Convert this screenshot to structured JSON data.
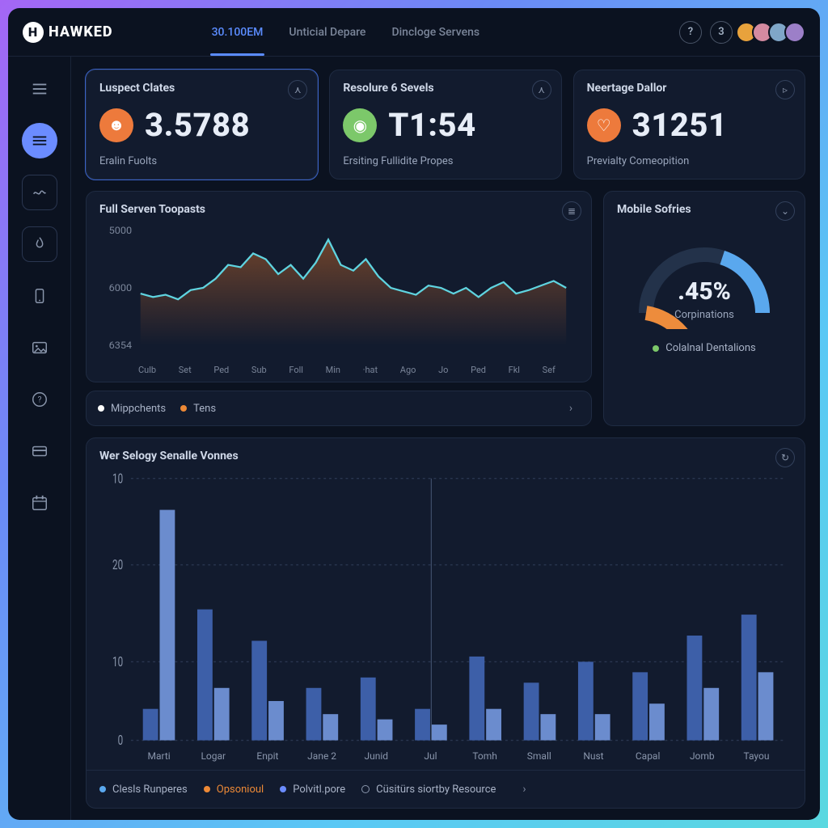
{
  "brand": "HAWKED",
  "header": {
    "tabs": [
      {
        "label": "30.100EM",
        "active": true
      },
      {
        "label": "Unticial Depare",
        "active": false
      },
      {
        "label": "Dincloge Servens",
        "active": false
      }
    ],
    "help_badge": "?",
    "notif_badge": "3",
    "avatars": [
      "#e8a23c",
      "#d48aa0",
      "#7fa6c8",
      "#9c7fc8"
    ]
  },
  "sidebar": {
    "items": [
      "list",
      "home",
      "flow",
      "flame",
      "mobile",
      "image",
      "help",
      "card",
      "calendar"
    ],
    "active_index": 1
  },
  "kpis": [
    {
      "title": "Luspect Clates",
      "icon_color": "#ed7a3c",
      "icon_glyph": "☻",
      "value": "3.5788",
      "sub": "Eralin Fuolts",
      "highlight": true,
      "action": "⋏"
    },
    {
      "title": "Resolure 6 Sevels",
      "icon_color": "#7cc86a",
      "icon_glyph": "◉",
      "value": "T1:54",
      "sub": "Ersiting Fullidite Propes",
      "highlight": false,
      "action": "⋏"
    },
    {
      "title": "Neertage Dallor",
      "icon_color": "#ed7a3c",
      "icon_glyph": "♡",
      "value": "31251",
      "sub": "Previalty Comeopition",
      "highlight": false,
      "action": "▹"
    }
  ],
  "line_chart": {
    "title": "Full Serven Toopasts",
    "action": "≣",
    "y_ticks": [
      "5000",
      "6000",
      "6354"
    ],
    "x_ticks": [
      "Culb",
      "Set",
      "Ped",
      "Sub",
      "Foll",
      "Min",
      "·hat",
      "Ago",
      "Jo",
      "Ped",
      "Fkl",
      "Sef"
    ],
    "stroke_color": "#5fd4e0",
    "fill_color": "#c96a2a",
    "points": [
      0.55,
      0.58,
      0.56,
      0.6,
      0.52,
      0.5,
      0.42,
      0.3,
      0.32,
      0.2,
      0.25,
      0.38,
      0.3,
      0.42,
      0.28,
      0.08,
      0.3,
      0.35,
      0.25,
      0.4,
      0.5,
      0.53,
      0.56,
      0.48,
      0.5,
      0.55,
      0.5,
      0.58,
      0.5,
      0.45,
      0.55,
      0.52,
      0.48,
      0.44,
      0.5
    ],
    "legend": [
      {
        "label": "Mippchents",
        "color": "#ffffff"
      },
      {
        "label": "Tens",
        "color": "#ed8936"
      }
    ]
  },
  "gauge": {
    "title": "Mobile Sofries",
    "value_text": ".45%",
    "label": "Corpinations",
    "pct_orange": 0.45,
    "pct_blue": 0.4,
    "orange": "#ed8c3c",
    "blue": "#5aa8ee",
    "track": "#23324a",
    "legend_color": "#7cc86a",
    "legend_text": "Colalnal Dentalions"
  },
  "bar_chart": {
    "title": "Wer Selogy Senalle Vonnes",
    "y_ticks": [
      "10",
      "20",
      "10",
      "0"
    ],
    "y_positions": [
      0,
      0.33,
      0.7,
      1.0
    ],
    "x_ticks": [
      "Marti",
      "Logar",
      "Enpit",
      "Jane 2",
      "Junid",
      "Jul",
      "Tomh",
      "Small",
      "Nust",
      "Capal",
      "Jomb",
      "Tayou"
    ],
    "series_a_color": "#3d5fa8",
    "series_b_color": "#6b8cce",
    "grid_color": "#2a3650",
    "groups": [
      {
        "a": 0.12,
        "b": 0.88
      },
      {
        "a": 0.5,
        "b": 0.2
      },
      {
        "a": 0.38,
        "b": 0.15
      },
      {
        "a": 0.2,
        "b": 0.1
      },
      {
        "a": 0.24,
        "b": 0.08
      },
      {
        "a": 0.12,
        "b": 0.06
      },
      {
        "a": 0.32,
        "b": 0.12
      },
      {
        "a": 0.22,
        "b": 0.1
      },
      {
        "a": 0.3,
        "b": 0.1
      },
      {
        "a": 0.26,
        "b": 0.14
      },
      {
        "a": 0.4,
        "b": 0.2
      },
      {
        "a": 0.48,
        "b": 0.26
      }
    ],
    "legend": [
      {
        "label": "Clesls Runperes",
        "color": "#5aa8ee",
        "type": "dot"
      },
      {
        "label": "Opsonioul",
        "color": "#ed8936",
        "type": "dot",
        "accent": true
      },
      {
        "label": "Polvitl.pore",
        "color": "#6b8cff",
        "type": "dot"
      },
      {
        "label": "Cüsitürs siortby Resource",
        "color": "#8a96ac",
        "type": "hollow"
      }
    ]
  }
}
